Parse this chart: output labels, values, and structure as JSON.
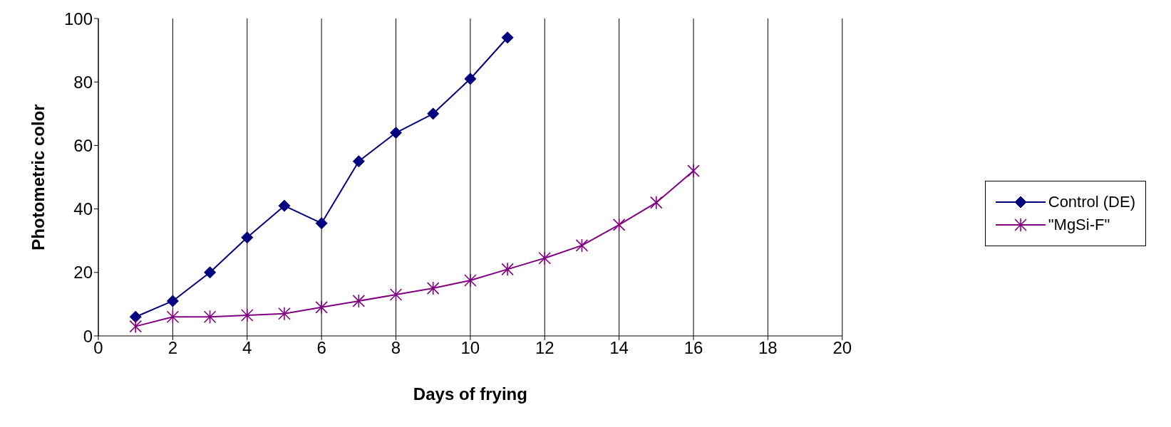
{
  "chart_data": {
    "type": "line",
    "xlabel": "Days of frying",
    "ylabel": "Photometric color",
    "xlim": [
      0,
      20
    ],
    "xticks": [
      0,
      2,
      4,
      6,
      8,
      10,
      12,
      14,
      16,
      18,
      20
    ],
    "ylim": [
      0,
      100
    ],
    "yticks": [
      0,
      20,
      40,
      60,
      80,
      100
    ],
    "grid": "x",
    "legend": "right",
    "series": [
      {
        "name": "Control (DE)",
        "color": "#000080",
        "marker": "diamond",
        "x": [
          1,
          2,
          3,
          4,
          5,
          6,
          7,
          8,
          9,
          10,
          11
        ],
        "values": [
          6,
          11,
          20,
          31,
          41,
          35.5,
          55,
          64,
          70,
          81,
          94
        ]
      },
      {
        "name": "\"MgSi-F\"",
        "color": "#800080",
        "marker": "cross",
        "x": [
          1,
          2,
          3,
          4,
          5,
          6,
          7,
          8,
          9,
          10,
          11,
          12,
          13,
          14,
          15,
          16
        ],
        "values": [
          3,
          6,
          6,
          6.5,
          7,
          9,
          11,
          13,
          15,
          17.5,
          21,
          24.5,
          28.5,
          35,
          42,
          52
        ]
      }
    ]
  }
}
